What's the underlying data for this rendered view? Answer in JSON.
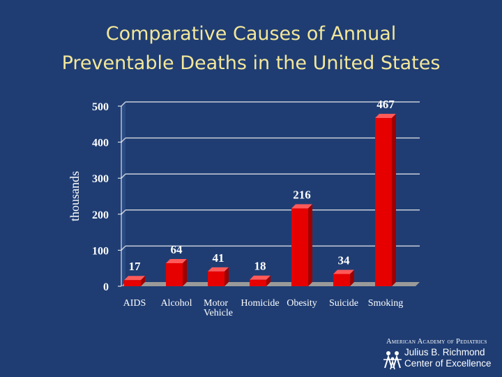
{
  "slide": {
    "title_line1": "Comparative Causes of Annual",
    "title_line2": "Preventable Deaths in the United States"
  },
  "chart_data": {
    "type": "bar",
    "title": "Comparative Causes of Annual Preventable Deaths in the United States",
    "xlabel": "",
    "ylabel": "thousands",
    "categories": [
      "AIDS",
      "Alcohol",
      "Motor Vehicle",
      "Homicide",
      "Obesity",
      "Suicide",
      "Smoking"
    ],
    "category_lines": [
      [
        "AIDS"
      ],
      [
        "Alcohol"
      ],
      [
        "Motor",
        "Vehicle"
      ],
      [
        "Homicide"
      ],
      [
        "Obesity"
      ],
      [
        "Suicide"
      ],
      [
        "Smoking"
      ]
    ],
    "values": [
      17,
      64,
      41,
      18,
      216,
      34,
      467
    ],
    "value_labels": [
      "17",
      "64",
      "41",
      "18",
      "216",
      "34",
      "467"
    ],
    "ylim": [
      0,
      500
    ],
    "yticks": [
      0,
      100,
      200,
      300,
      400,
      500
    ],
    "ytick_labels": [
      "0",
      "100",
      "200",
      "300",
      "400",
      "500"
    ],
    "grid": true,
    "bar_color": "#e60000"
  },
  "logo": {
    "line1": "American Academy of Pediatrics",
    "line2": "Julius B. Richmond",
    "line3": "Center of Excellence"
  }
}
